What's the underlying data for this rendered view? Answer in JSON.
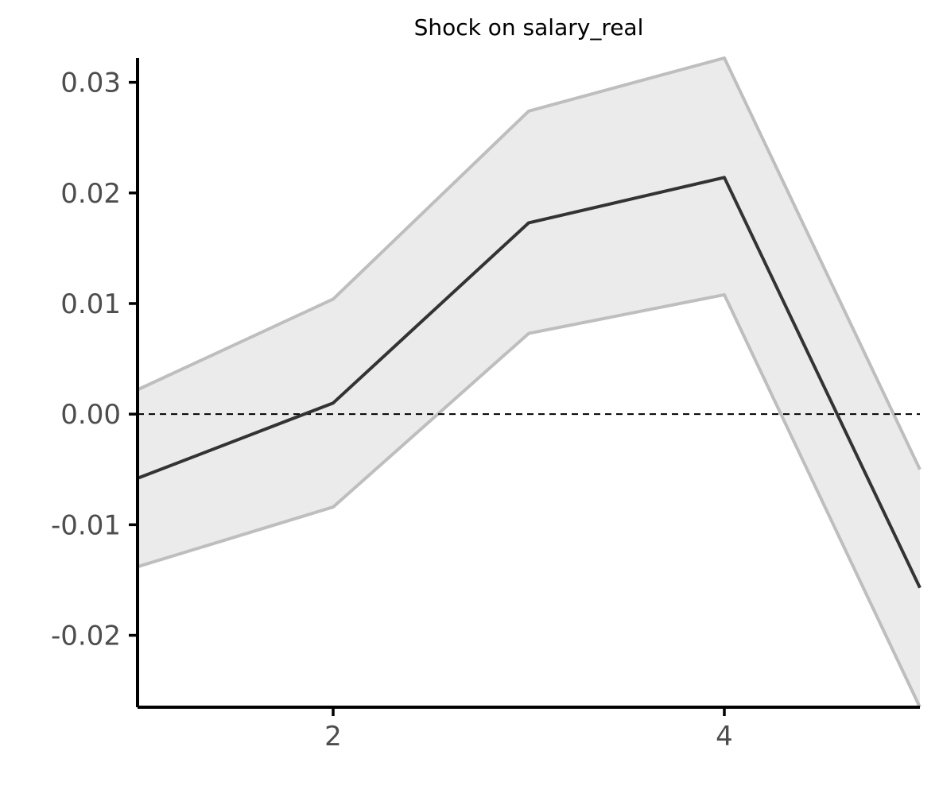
{
  "chart_data": {
    "type": "line",
    "title": "Shock on salary_real",
    "xlabel": "",
    "ylabel": "",
    "xlim": [
      1,
      5
    ],
    "ylim": [
      -0.0265,
      0.0322
    ],
    "x_ticks": [
      2,
      4
    ],
    "x_tick_labels": [
      "2",
      "4"
    ],
    "y_ticks": [
      -0.02,
      -0.01,
      0.0,
      0.01,
      0.02,
      0.03
    ],
    "y_tick_labels": [
      "-0.02",
      "-0.01",
      "0.00",
      "0.01",
      "0.02",
      "0.03"
    ],
    "x": [
      1,
      2,
      3,
      4,
      5
    ],
    "series": [
      {
        "role": "estimate",
        "values": [
          -0.0058,
          0.001,
          0.0173,
          0.0214,
          -0.0157
        ]
      },
      {
        "role": "upper",
        "values": [
          0.0022,
          0.0104,
          0.0274,
          0.0322,
          -0.005
        ]
      },
      {
        "role": "lower",
        "values": [
          -0.0138,
          -0.0084,
          0.0073,
          0.0108,
          -0.0265
        ]
      }
    ],
    "reference_line": {
      "y": 0.0,
      "style": "dashed"
    },
    "grid": false,
    "legend": "none",
    "colors": {
      "estimate": "#333333",
      "bounds": "#bebebe",
      "band": "#ebebeb",
      "axis": "#000000",
      "tick_text": "#4d4d4d"
    }
  }
}
